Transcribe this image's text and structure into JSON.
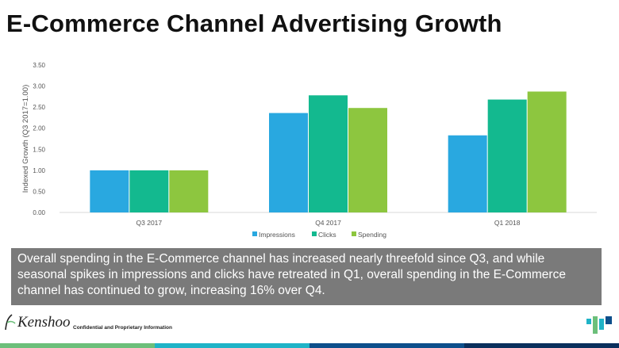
{
  "title": "E-Commerce Channel Advertising Growth",
  "colors": {
    "impressions": "#29a8e0",
    "clicks": "#13b98f",
    "spending": "#8dc63f",
    "callout_bg": "#7a7a7a",
    "footer": [
      "#6cbf7a",
      "#1fb3c7",
      "#0d4f8b",
      "#0a2f5c"
    ]
  },
  "chart_data": {
    "type": "bar",
    "categories": [
      "Q3 2017",
      "Q4 2017",
      "Q1 2018"
    ],
    "series": [
      {
        "name": "Impressions",
        "values": [
          1.0,
          2.36,
          1.83
        ]
      },
      {
        "name": "Clicks",
        "values": [
          1.0,
          2.78,
          2.68
        ]
      },
      {
        "name": "Spending",
        "values": [
          1.0,
          2.48,
          2.87
        ]
      }
    ],
    "ylabel": "Indexed Growth (Q3 2017=1.00)",
    "ylim": [
      0,
      3.5
    ],
    "yticks": [
      "0.00",
      "0.50",
      "1.00",
      "1.50",
      "2.00",
      "2.50",
      "3.00",
      "3.50"
    ],
    "grid": false,
    "legend": "bottom"
  },
  "callout": "Overall spending in the E-Commerce channel has increased nearly threefold since Q3, and while seasonal spikes in impressions and clicks have retreated in Q1, overall spending in the E-Commerce channel has continued to grow, increasing 16% over Q4.",
  "footer": {
    "brand": "Kenshoo",
    "confidential": "Confidential and Proprietary Information"
  },
  "icons": {
    "brand_logo": "kenshoo-logo-icon",
    "corner": "bars-logo-icon"
  }
}
